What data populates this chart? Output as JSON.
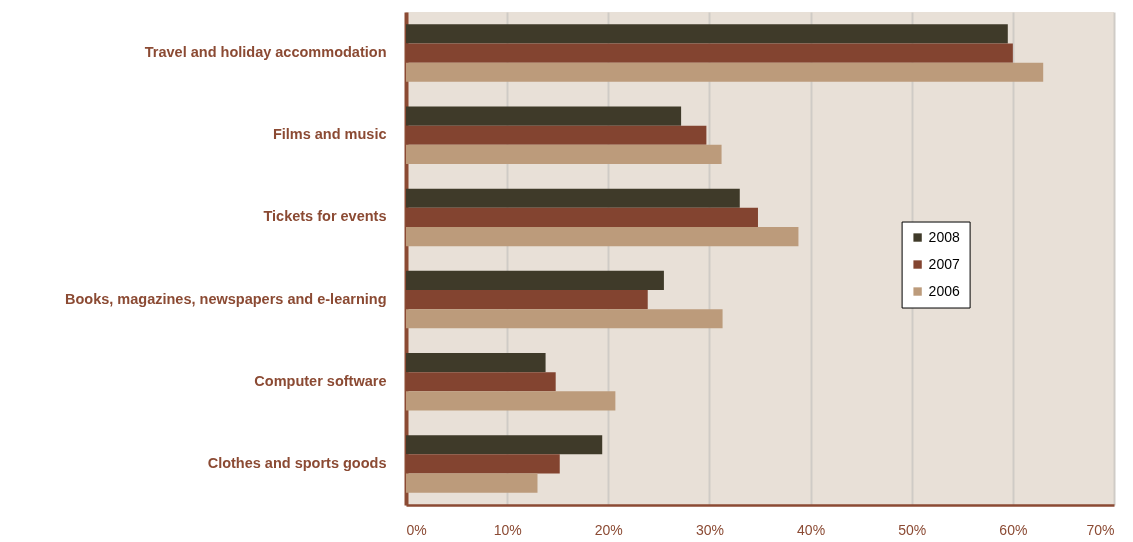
{
  "chart_data": {
    "type": "bar",
    "orientation": "horizontal",
    "categories": [
      "Travel and holiday accommodation",
      "Films and music",
      "Tickets for events",
      "Books, magazines, newspapers and e-learning",
      "Computer software",
      "Clothes and sports goods"
    ],
    "series": [
      {
        "name": "2008",
        "color": "#3f3a29",
        "values": [
          59.5,
          27.2,
          33.0,
          25.5,
          13.8,
          19.4
        ]
      },
      {
        "name": "2007",
        "color": "#834430",
        "values": [
          60.0,
          29.7,
          34.8,
          23.9,
          14.8,
          15.2
        ]
      },
      {
        "name": "2006",
        "color": "#bc9b7b",
        "values": [
          63.0,
          31.2,
          38.8,
          31.3,
          20.7,
          13.0
        ]
      }
    ],
    "xlim": [
      0,
      70
    ],
    "xticks": [
      {
        "value": 0,
        "label": "0%"
      },
      {
        "value": 10,
        "label": "10%"
      },
      {
        "value": 20,
        "label": "20%"
      },
      {
        "value": 30,
        "label": "30%"
      },
      {
        "value": 40,
        "label": "40%"
      },
      {
        "value": 50,
        "label": "50%"
      },
      {
        "value": 60,
        "label": "60%"
      },
      {
        "value": 70,
        "label": "70%"
      }
    ],
    "grid": "x",
    "legend": "right"
  }
}
